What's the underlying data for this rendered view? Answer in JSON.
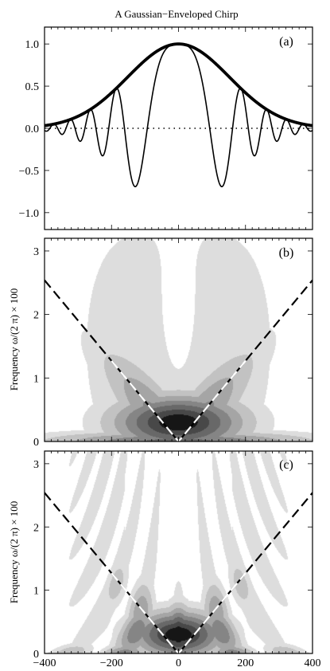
{
  "title": "A Gaussian−Enveloped Chirp",
  "chart_data": [
    {
      "panel_label": "(a)",
      "type": "line",
      "xlim": [
        -400,
        400
      ],
      "ylim": [
        -1.2,
        1.2
      ],
      "yticks": [
        "−1.0",
        "−0.5",
        "0.0",
        "0.5",
        "1.0"
      ],
      "ytick_values": [
        -1.0,
        -0.5,
        0.0,
        0.5,
        1.0
      ],
      "grid": false,
      "series": [
        {
          "role": "envelope",
          "style": "thick solid",
          "formula": "exp(-(t/215)^2)",
          "points": [
            [
              -400,
              0.031
            ],
            [
              -300,
              0.143
            ],
            [
              -200,
              0.421
            ],
            [
              -100,
              0.806
            ],
            [
              0,
              1.0
            ],
            [
              100,
              0.806
            ],
            [
              200,
              0.421
            ],
            [
              300,
              0.143
            ],
            [
              400,
              0.031
            ]
          ]
        },
        {
          "role": "chirp",
          "style": "thin solid",
          "formula": "exp(-(t/215)^2)*cos(0.000181*t^2)",
          "peaks": [
            [
              0,
              1.0
            ],
            [
              -132,
              -0.78
            ],
            [
              132,
              -0.78
            ],
            [
              -186,
              0.6
            ],
            [
              186,
              0.6
            ],
            [
              -228,
              -0.48
            ],
            [
              228,
              -0.48
            ],
            [
              -263,
              0.32
            ],
            [
              263,
              0.32
            ]
          ]
        },
        {
          "role": "zero line",
          "style": "dotted",
          "points": [
            [
              -400,
              0
            ],
            [
              400,
              0
            ]
          ]
        }
      ]
    },
    {
      "panel_label": "(b)",
      "type": "heatmap",
      "ylabel": "Frequency ω/(2 π) × 100",
      "xlim": [
        -400,
        400
      ],
      "ylim": [
        0,
        3.2
      ],
      "yticks": [
        "0",
        "1",
        "2",
        "3"
      ],
      "ytick_values": [
        0,
        1,
        2,
        3
      ],
      "contour_levels": [
        0.04,
        0.12,
        0.24,
        0.38,
        0.54,
        0.72,
        0.88
      ],
      "overlay": {
        "style": "dashed, black outside / white inside",
        "line": "|frequency| = |t| * 0.00635",
        "points": [
          [
            -400,
            2.54
          ],
          [
            0,
            0
          ],
          [
            400,
            2.54
          ]
        ]
      }
    },
    {
      "panel_label": "(c)",
      "type": "heatmap",
      "ylabel": "Frequency ω/(2 π) × 100",
      "xlim": [
        -400,
        400
      ],
      "ylim": [
        0,
        3.2
      ],
      "xticks": [
        "−400",
        "−200",
        "0",
        "200",
        "400"
      ],
      "xtick_values": [
        -400,
        -200,
        0,
        200,
        400
      ],
      "yticks": [
        "0",
        "1",
        "2",
        "3"
      ],
      "ytick_values": [
        0,
        1,
        2,
        3
      ],
      "contour_levels": [
        0.04,
        0.12,
        0.24,
        0.38,
        0.54,
        0.72,
        0.88
      ],
      "overlay": {
        "style": "dashed, black outside / white inside",
        "line": "|frequency| = |t| * 0.00635",
        "points": [
          [
            -400,
            2.54
          ],
          [
            0,
            0
          ],
          [
            400,
            2.54
          ]
        ]
      }
    }
  ]
}
